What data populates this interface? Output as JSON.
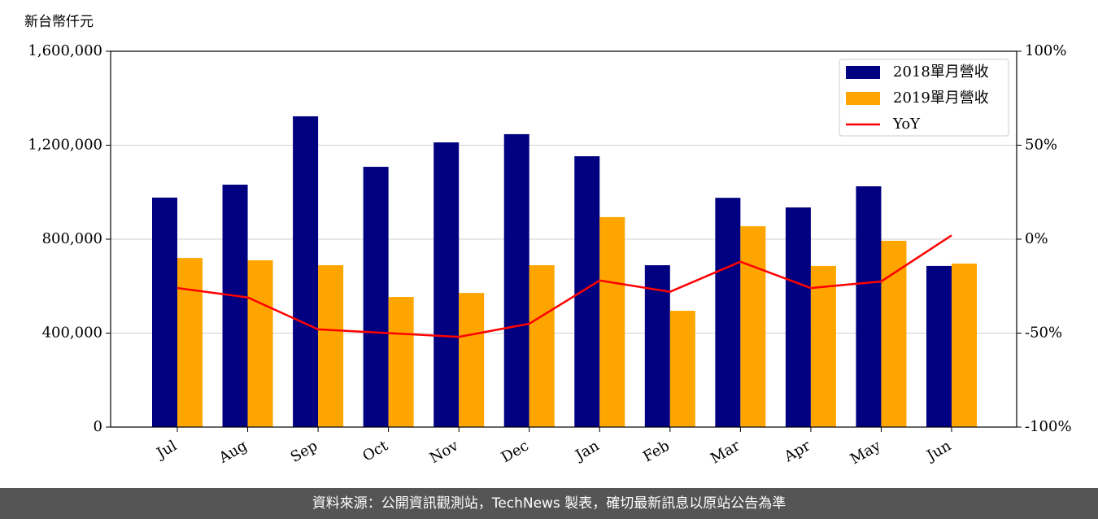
{
  "chart_data": {
    "type": "bar",
    "ylabel": "新台幣仟元",
    "categories": [
      "Jul",
      "Aug",
      "Sep",
      "Oct",
      "Nov",
      "Dec",
      "Jan",
      "Feb",
      "Mar",
      "Apr",
      "May",
      "Jun"
    ],
    "series": [
      {
        "name": "2018單月營收",
        "color": "#000080",
        "values": [
          977000,
          1032000,
          1323000,
          1108000,
          1212000,
          1247000,
          1153000,
          689000,
          976000,
          935000,
          1025000,
          686000
        ]
      },
      {
        "name": "2019單月營收",
        "color": "#ffa500",
        "values": [
          720000,
          710000,
          689000,
          554000,
          571000,
          689000,
          894000,
          495000,
          855000,
          686000,
          793000,
          696000
        ]
      },
      {
        "name": "YoY",
        "color": "#ff0000",
        "type": "line",
        "axis": "y2",
        "values": [
          -26,
          -31,
          -48,
          -50,
          -52,
          -45,
          -22,
          -28,
          -12,
          -26,
          -22.5,
          2
        ]
      }
    ],
    "ylim": [
      0,
      1600000
    ],
    "yticks": [
      0,
      {
        "value": 400000,
        "label": "400,000"
      },
      {
        "value": 800000,
        "label": "800,000"
      },
      {
        "value": 1200000,
        "label": "1,200,000"
      },
      {
        "value": 1600000,
        "label": "1,600,000"
      }
    ],
    "y2lim": [
      -100,
      100
    ],
    "y2ticks": [
      {
        "value": -100,
        "label": "-100%"
      },
      {
        "value": -50,
        "label": "-50%"
      },
      {
        "value": 0,
        "label": "0%"
      },
      {
        "value": 50,
        "label": "50%"
      },
      {
        "value": 100,
        "label": "100%"
      }
    ],
    "grid": true,
    "legend": "upper right"
  },
  "footer": "資料來源：公開資訊觀測站，TechNews 製表，確切最新訊息以原站公告為準"
}
